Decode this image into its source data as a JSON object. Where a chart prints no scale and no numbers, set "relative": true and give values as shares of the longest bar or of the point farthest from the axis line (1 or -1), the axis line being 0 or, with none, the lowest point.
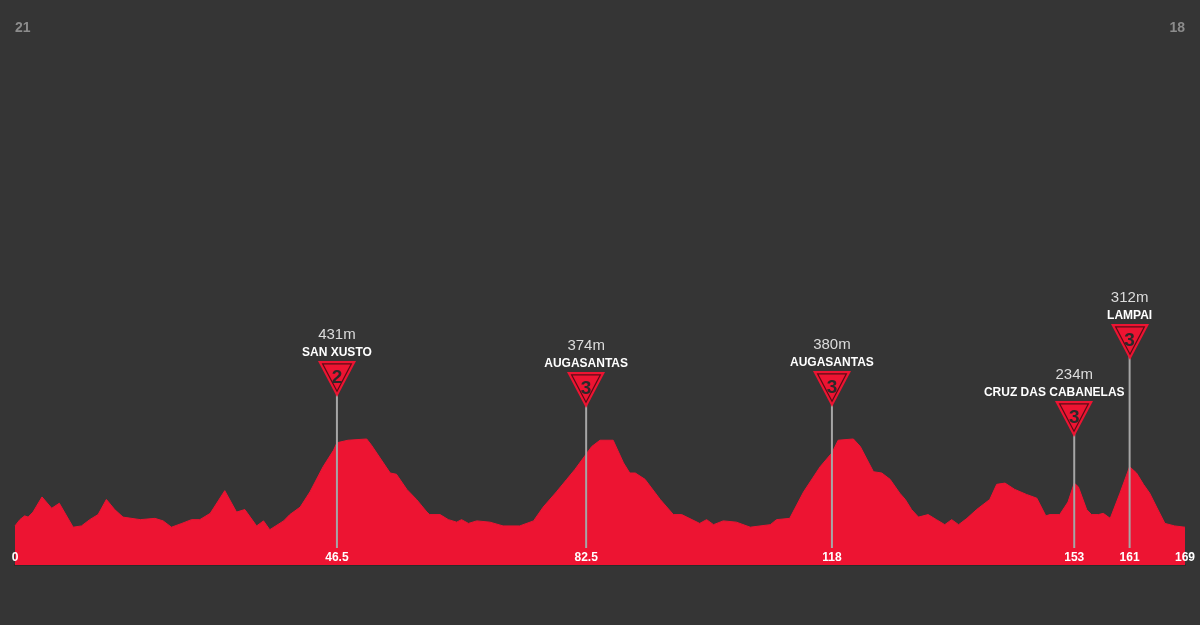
{
  "chart_data": {
    "type": "area",
    "color": "#ed1432",
    "relative": true,
    "x": [
      0,
      0.7,
      1.4,
      1.9,
      2.6,
      3.9,
      5.3,
      6.4,
      8.4,
      9.6,
      10.8,
      12.0,
      13.2,
      14.4,
      15.6,
      18.1,
      20.2,
      21.4,
      22.6,
      24.1,
      25.5,
      26.7,
      28.2,
      30.3,
      32.0,
      33.2,
      34.9,
      35.9,
      36.8,
      38.8,
      39.7,
      41.2,
      42.6,
      44.5,
      46.0,
      46.5,
      48.1,
      50.8,
      51.5,
      54.2,
      55.1,
      56.6,
      58.0,
      59.5,
      59.9,
      61.4,
      62.6,
      63.8,
      64.5,
      65.5,
      66.7,
      68.6,
      70.5,
      72.9,
      74.9,
      76.3,
      78.2,
      79.7,
      80.9,
      82.5,
      83.3,
      84.5,
      86.4,
      87.9,
      88.8,
      89.6,
      91.0,
      93.2,
      95.1,
      96.3,
      98.9,
      99.9,
      100.9,
      102.3,
      104.2,
      106.2,
      109.1,
      110.0,
      111.9,
      113.9,
      116.3,
      118,
      118.9,
      121.1,
      122.1,
      124.0,
      125.2,
      126.4,
      127.8,
      128.6,
      129.5,
      130.5,
      131.9,
      133.1,
      134.3,
      135.3,
      136.3,
      137.5,
      138.9,
      140.8,
      141.8,
      143.0,
      144.4,
      146.1,
      147.6,
      148.9,
      149.5,
      150.9,
      152.1,
      153,
      153.6,
      154.8,
      155.5,
      156.5,
      157.2,
      158.2,
      159.6,
      161,
      162.0,
      163.0,
      163.9,
      164.9,
      166.1,
      167.5,
      169
    ],
    "values": [
      0.31,
      0.36,
      0.39,
      0.38,
      0.42,
      0.54,
      0.45,
      0.49,
      0.3,
      0.31,
      0.36,
      0.4,
      0.52,
      0.44,
      0.38,
      0.36,
      0.37,
      0.35,
      0.3,
      0.33,
      0.36,
      0.36,
      0.41,
      0.59,
      0.42,
      0.44,
      0.31,
      0.35,
      0.28,
      0.35,
      0.4,
      0.46,
      0.58,
      0.78,
      0.91,
      0.97,
      0.99,
      1,
      0.95,
      0.73,
      0.72,
      0.6,
      0.52,
      0.42,
      0.4,
      0.4,
      0.36,
      0.34,
      0.36,
      0.33,
      0.35,
      0.34,
      0.31,
      0.31,
      0.35,
      0.46,
      0.58,
      0.68,
      0.76,
      0.88,
      0.94,
      0.99,
      0.99,
      0.81,
      0.73,
      0.73,
      0.68,
      0.52,
      0.4,
      0.4,
      0.33,
      0.36,
      0.32,
      0.35,
      0.34,
      0.3,
      0.32,
      0.36,
      0.37,
      0.58,
      0.78,
      0.89,
      0.99,
      1,
      0.94,
      0.74,
      0.73,
      0.68,
      0.57,
      0.52,
      0.44,
      0.38,
      0.4,
      0.36,
      0.32,
      0.36,
      0.32,
      0.37,
      0.44,
      0.52,
      0.64,
      0.65,
      0.6,
      0.56,
      0.53,
      0.39,
      0.4,
      0.4,
      0.5,
      0.65,
      0.62,
      0.44,
      0.4,
      0.4,
      0.41,
      0.37,
      0.57,
      0.78,
      0.73,
      0.64,
      0.57,
      0.46,
      0.33,
      0.31,
      0.3
    ],
    "xlim": [
      0,
      169
    ],
    "xticks": [
      0,
      46.5,
      82.5,
      118,
      153,
      161,
      169
    ],
    "tick_labels": "x",
    "ref_lines": [
      {
        "axis": "x",
        "value": 46.5,
        "label": "SAN XUSTO",
        "color": "#a6a6a6"
      },
      {
        "axis": "x",
        "value": 82.5,
        "label": "AUGASANTAS",
        "color": "#a6a6a6"
      },
      {
        "axis": "x",
        "value": 118,
        "label": "AUGASANTAS",
        "color": "#a6a6a6"
      },
      {
        "axis": "x",
        "value": 153,
        "label": "CRUZ DAS CABANELAS",
        "color": "#a6a6a6"
      },
      {
        "axis": "x",
        "value": 161,
        "label": "LAMPAI",
        "color": "#a6a6a6"
      }
    ],
    "annotations": [
      "21",
      "18",
      "431m",
      "2",
      "374m",
      "3",
      "380m",
      "3",
      "234m",
      "3",
      "312m",
      "3"
    ]
  }
}
